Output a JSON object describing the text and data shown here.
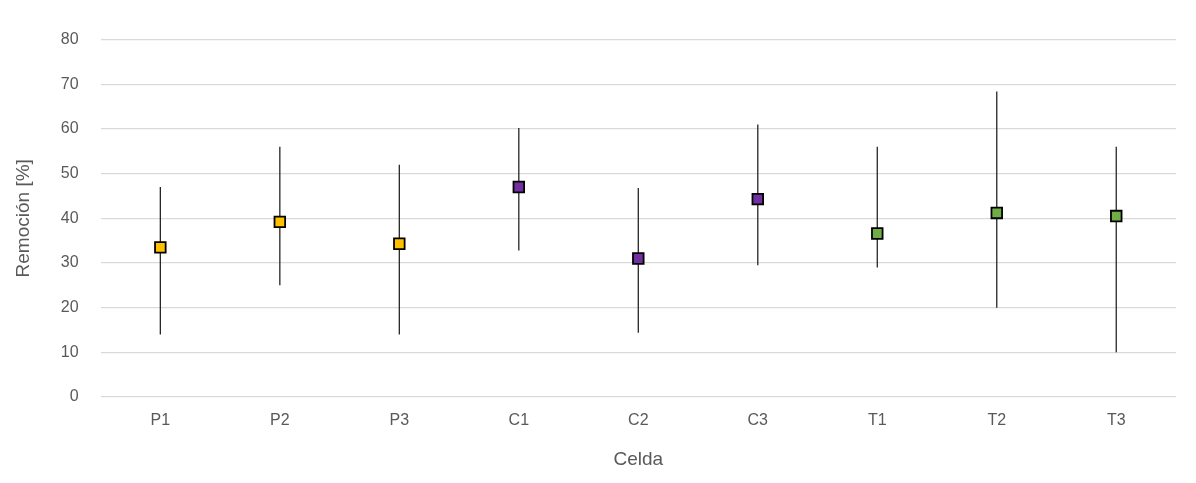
{
  "chart_data": {
    "type": "scatter",
    "xlabel": "Celda",
    "ylabel": "Remoción [%]",
    "categories": [
      "P1",
      "P2",
      "P3",
      "C1",
      "C2",
      "C3",
      "T1",
      "T2",
      "T3"
    ],
    "values": [
      33.5,
      39.2,
      34.3,
      47,
      31,
      44.3,
      36.6,
      41.2,
      40.5
    ],
    "colors": [
      "#ffc000",
      "#ffc000",
      "#ffc000",
      "#7030a0",
      "#7030a0",
      "#7030a0",
      "#70ad47",
      "#70ad47",
      "#70ad47"
    ],
    "errors": [
      [
        14,
        47
      ],
      [
        25,
        56
      ],
      [
        14,
        52
      ],
      [
        32.8,
        60.2
      ],
      [
        14.4,
        46.8
      ],
      [
        29.5,
        61
      ],
      [
        29,
        56
      ],
      [
        20,
        68.4
      ],
      [
        10,
        56
      ]
    ],
    "ylim": [
      0,
      80
    ],
    "yticks": [
      0,
      10,
      20,
      30,
      40,
      50,
      60,
      70,
      80
    ],
    "grid": "y",
    "marker": "square",
    "legend": false
  }
}
